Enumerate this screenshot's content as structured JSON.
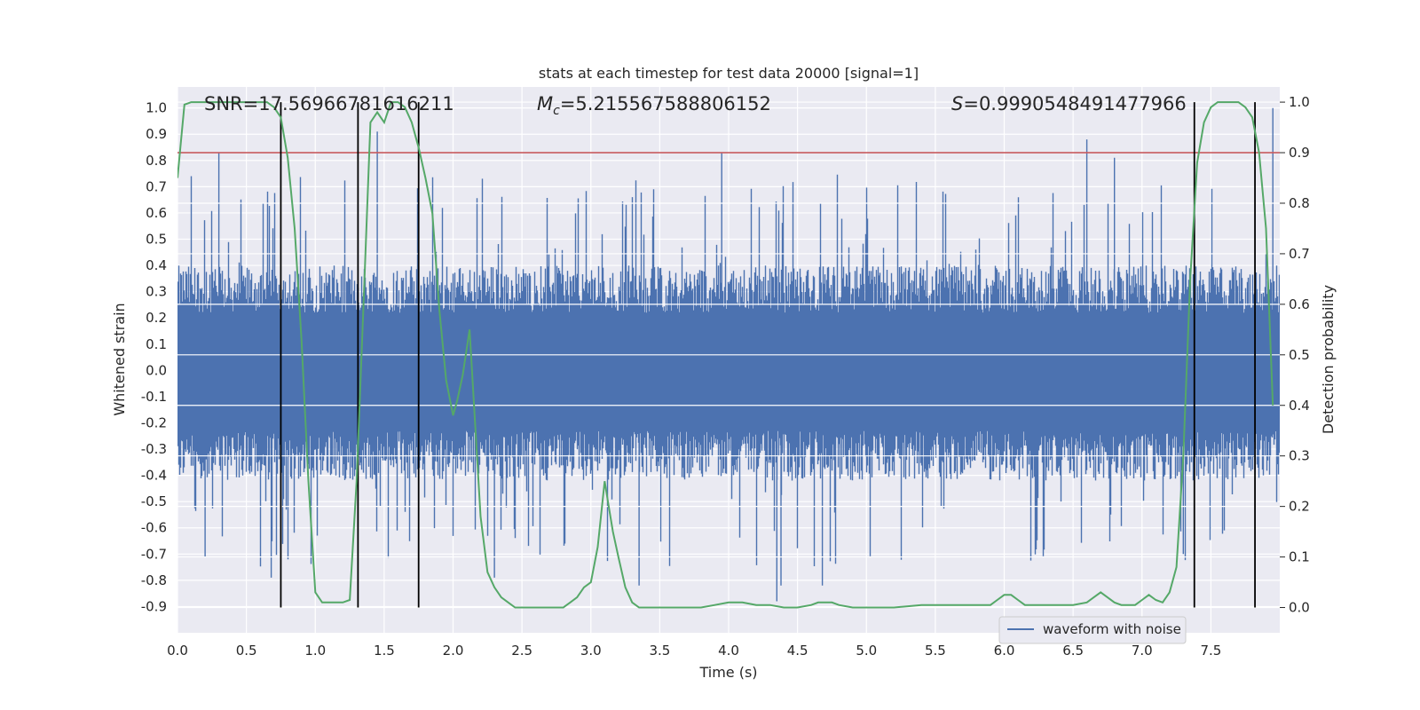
{
  "chart_data": {
    "type": "line",
    "title": "stats at each timestep for test data 20000 [signal=1]",
    "xlabel": "Time (s)",
    "ylabel_left": "Whitened strain",
    "ylabel_right": "Detection probability",
    "xlim": [
      0.0,
      8.0
    ],
    "ylim_left": [
      -1.0,
      1.08
    ],
    "ylim_right": [
      -0.05,
      1.03
    ],
    "x_ticks": [
      "0.0",
      "0.5",
      "1.0",
      "1.5",
      "2.0",
      "2.5",
      "3.0",
      "3.5",
      "4.0",
      "4.5",
      "5.0",
      "5.5",
      "6.0",
      "6.5",
      "7.0",
      "7.5"
    ],
    "y_ticks_left": [
      "1.0",
      "0.9",
      "0.8",
      "0.7",
      "0.6",
      "0.5",
      "0.4",
      "0.3",
      "0.2",
      "0.1",
      "0.0",
      "-0.1",
      "-0.2",
      "-0.3",
      "-0.4",
      "-0.5",
      "-0.6",
      "-0.7",
      "-0.8",
      "-0.9"
    ],
    "y_ticks_right": [
      "1.0",
      "0.9",
      "0.8",
      "0.7",
      "0.6",
      "0.5",
      "0.4",
      "0.3",
      "0.2",
      "0.1",
      "0.0"
    ],
    "grid": true,
    "legend_position": "lower-right",
    "annotations": {
      "snr": "SNR=17.56966781616211",
      "mc_symbol": "M",
      "mc_subscript": "c",
      "mc_value": "=5.215567588806152",
      "s_symbol": "S",
      "s_value": "=0.9990548491477966"
    },
    "series": [
      {
        "name": "waveform with noise",
        "axis": "left",
        "color": "#4c72b0",
        "envelope": {
          "typical_upper": 0.4,
          "typical_lower": -0.42,
          "peak_max": 1.0,
          "peak_min": -0.88,
          "samples": 8000
        }
      },
      {
        "axis": "right",
        "color": "#55a868",
        "x": [
          0.0,
          0.05,
          0.1,
          0.2,
          0.3,
          0.4,
          0.5,
          0.6,
          0.65,
          0.7,
          0.75,
          0.8,
          0.85,
          0.9,
          0.95,
          1.0,
          1.05,
          1.1,
          1.15,
          1.2,
          1.25,
          1.3,
          1.35,
          1.4,
          1.45,
          1.5,
          1.55,
          1.6,
          1.65,
          1.7,
          1.75,
          1.8,
          1.85,
          1.9,
          1.95,
          2.0,
          2.03,
          2.07,
          2.12,
          2.15,
          2.2,
          2.25,
          2.3,
          2.35,
          2.4,
          2.45,
          2.5,
          2.6,
          2.7,
          2.8,
          2.85,
          2.9,
          2.95,
          3.0,
          3.05,
          3.1,
          3.13,
          3.16,
          3.2,
          3.25,
          3.3,
          3.35,
          3.4,
          3.5,
          3.6,
          3.7,
          3.8,
          3.9,
          4.0,
          4.1,
          4.2,
          4.3,
          4.4,
          4.5,
          4.6,
          4.65,
          4.7,
          4.75,
          4.8,
          4.9,
          5.0,
          5.2,
          5.4,
          5.6,
          5.8,
          5.9,
          5.95,
          6.0,
          6.05,
          6.1,
          6.15,
          6.2,
          6.3,
          6.4,
          6.5,
          6.6,
          6.65,
          6.7,
          6.75,
          6.8,
          6.85,
          6.9,
          6.95,
          7.0,
          7.05,
          7.1,
          7.15,
          7.2,
          7.25,
          7.3,
          7.35,
          7.4,
          7.45,
          7.5,
          7.55,
          7.6,
          7.65,
          7.7,
          7.75,
          7.8,
          7.85,
          7.9,
          7.95
        ],
        "values": [
          0.85,
          0.995,
          1.0,
          1.0,
          1.0,
          1.0,
          1.0,
          1.0,
          1.0,
          0.99,
          0.97,
          0.89,
          0.75,
          0.53,
          0.25,
          0.03,
          0.01,
          0.01,
          0.01,
          0.01,
          0.015,
          0.25,
          0.6,
          0.96,
          0.98,
          0.96,
          1.0,
          1.0,
          0.99,
          0.96,
          0.91,
          0.85,
          0.78,
          0.59,
          0.45,
          0.38,
          0.41,
          0.46,
          0.55,
          0.41,
          0.18,
          0.07,
          0.04,
          0.02,
          0.01,
          0.0,
          0.0,
          0.0,
          0.0,
          0.0,
          0.01,
          0.02,
          0.04,
          0.05,
          0.12,
          0.25,
          0.2,
          0.15,
          0.1,
          0.04,
          0.01,
          0.0,
          0.0,
          0.0,
          0.0,
          0.0,
          0.0,
          0.005,
          0.01,
          0.01,
          0.005,
          0.005,
          0.0,
          0.0,
          0.005,
          0.01,
          0.01,
          0.01,
          0.005,
          0.0,
          0.0,
          0.0,
          0.005,
          0.005,
          0.005,
          0.005,
          0.015,
          0.025,
          0.025,
          0.015,
          0.005,
          0.005,
          0.005,
          0.005,
          0.005,
          0.01,
          0.02,
          0.03,
          0.02,
          0.01,
          0.005,
          0.005,
          0.005,
          0.015,
          0.025,
          0.015,
          0.01,
          0.03,
          0.08,
          0.3,
          0.65,
          0.88,
          0.96,
          0.99,
          1.0,
          1.0,
          1.0,
          1.0,
          0.99,
          0.97,
          0.9,
          0.75,
          0.4
        ],
        "stroke_width_note": "line"
      }
    ],
    "threshold_line": {
      "axis": "right",
      "value": 0.9,
      "color": "#c44e52"
    },
    "vertical_markers": {
      "x": [
        0.75,
        1.31,
        1.75,
        7.38,
        7.82
      ],
      "color": "#000000"
    }
  }
}
